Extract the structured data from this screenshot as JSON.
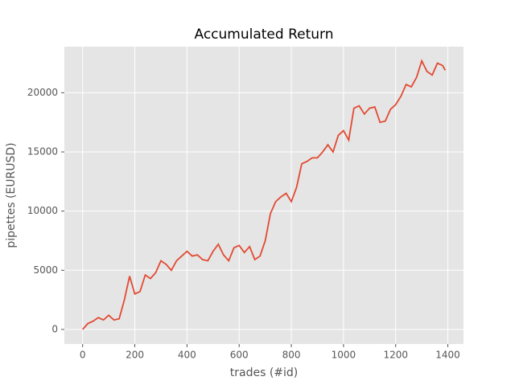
{
  "chart_data": {
    "type": "line",
    "title": "Accumulated Return",
    "x_label": "trades (#id)",
    "y_label": "pipettes (EURUSD)",
    "x": [
      0,
      20,
      40,
      60,
      80,
      100,
      120,
      140,
      160,
      180,
      200,
      220,
      240,
      260,
      280,
      300,
      320,
      340,
      360,
      380,
      400,
      420,
      440,
      460,
      480,
      500,
      520,
      540,
      560,
      580,
      600,
      620,
      640,
      660,
      680,
      700,
      720,
      740,
      760,
      780,
      800,
      820,
      840,
      860,
      880,
      900,
      920,
      940,
      960,
      980,
      1000,
      1020,
      1040,
      1060,
      1080,
      1100,
      1120,
      1140,
      1160,
      1180,
      1200,
      1220,
      1240,
      1260,
      1280,
      1300,
      1320,
      1340,
      1360,
      1380,
      1390
    ],
    "series": [
      {
        "name": "Accumulated Return",
        "color": "#E24A33",
        "values": [
          0,
          500,
          700,
          1000,
          800,
          1200,
          800,
          900,
          2500,
          4500,
          3000,
          3200,
          4600,
          4300,
          4800,
          5800,
          5500,
          5000,
          5800,
          6200,
          6600,
          6200,
          6300,
          5900,
          5800,
          6600,
          7200,
          6300,
          5800,
          6900,
          7100,
          6500,
          7000,
          5900,
          6200,
          7500,
          9800,
          10800,
          11200,
          11500,
          10800,
          12000,
          14000,
          14200,
          14500,
          14500,
          15000,
          15600,
          15000,
          16400,
          16800,
          16000,
          18700,
          18900,
          18200,
          18700,
          18800,
          17500,
          17600,
          18600,
          19000,
          19700,
          20700,
          20500,
          21300,
          22700,
          21800,
          21500,
          22500,
          22300,
          21900
        ]
      }
    ],
    "xlim": [
      -70,
      1460
    ],
    "ylim": [
      -1230,
      23900
    ],
    "xticks": [
      0,
      200,
      400,
      600,
      800,
      1000,
      1200,
      1400
    ],
    "yticks": [
      0,
      5000,
      10000,
      15000,
      20000
    ],
    "grid": true
  }
}
